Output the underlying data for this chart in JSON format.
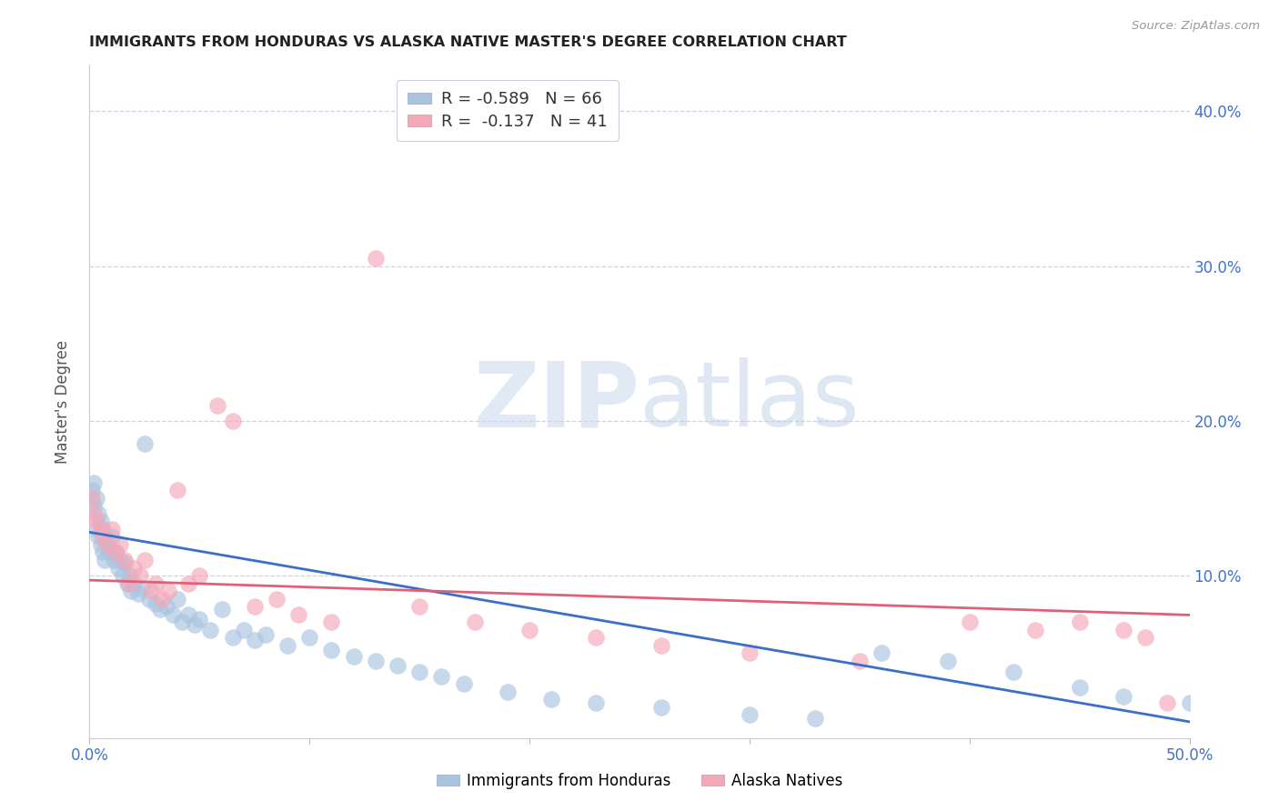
{
  "title": "IMMIGRANTS FROM HONDURAS VS ALASKA NATIVE MASTER'S DEGREE CORRELATION CHART",
  "source": "Source: ZipAtlas.com",
  "ylabel": "Master's Degree",
  "ytick_labels": [
    "10.0%",
    "20.0%",
    "30.0%",
    "40.0%"
  ],
  "ytick_values": [
    0.1,
    0.2,
    0.3,
    0.4
  ],
  "xlim": [
    0.0,
    0.5
  ],
  "ylim": [
    -0.005,
    0.43
  ],
  "blue_R": -0.589,
  "blue_N": 66,
  "pink_R": -0.137,
  "pink_N": 41,
  "blue_color": "#a8c4e0",
  "pink_color": "#f4a8b8",
  "blue_line_color": "#3a6fc8",
  "pink_line_color": "#e0607a",
  "watermark_zip": "ZIP",
  "watermark_atlas": "atlas",
  "background_color": "#ffffff",
  "grid_color": "#c8d4e8",
  "blue_scatter_x": [
    0.001,
    0.002,
    0.002,
    0.003,
    0.003,
    0.004,
    0.004,
    0.005,
    0.005,
    0.006,
    0.006,
    0.007,
    0.007,
    0.008,
    0.009,
    0.01,
    0.011,
    0.012,
    0.013,
    0.014,
    0.015,
    0.016,
    0.017,
    0.018,
    0.019,
    0.02,
    0.022,
    0.024,
    0.025,
    0.027,
    0.03,
    0.032,
    0.035,
    0.038,
    0.04,
    0.042,
    0.045,
    0.048,
    0.05,
    0.055,
    0.06,
    0.065,
    0.07,
    0.075,
    0.08,
    0.09,
    0.1,
    0.11,
    0.12,
    0.13,
    0.14,
    0.15,
    0.16,
    0.17,
    0.19,
    0.21,
    0.23,
    0.26,
    0.3,
    0.33,
    0.36,
    0.39,
    0.42,
    0.45,
    0.47,
    0.5
  ],
  "blue_scatter_y": [
    0.155,
    0.16,
    0.145,
    0.15,
    0.13,
    0.14,
    0.125,
    0.135,
    0.12,
    0.13,
    0.115,
    0.125,
    0.11,
    0.12,
    0.115,
    0.125,
    0.11,
    0.115,
    0.105,
    0.11,
    0.1,
    0.108,
    0.095,
    0.1,
    0.09,
    0.095,
    0.088,
    0.092,
    0.185,
    0.085,
    0.082,
    0.078,
    0.08,
    0.075,
    0.085,
    0.07,
    0.075,
    0.068,
    0.072,
    0.065,
    0.078,
    0.06,
    0.065,
    0.058,
    0.062,
    0.055,
    0.06,
    0.052,
    0.048,
    0.045,
    0.042,
    0.038,
    0.035,
    0.03,
    0.025,
    0.02,
    0.018,
    0.015,
    0.01,
    0.008,
    0.05,
    0.045,
    0.038,
    0.028,
    0.022,
    0.018
  ],
  "pink_scatter_x": [
    0.001,
    0.002,
    0.003,
    0.005,
    0.006,
    0.008,
    0.01,
    0.012,
    0.014,
    0.016,
    0.018,
    0.02,
    0.023,
    0.025,
    0.028,
    0.03,
    0.033,
    0.036,
    0.04,
    0.045,
    0.05,
    0.058,
    0.065,
    0.075,
    0.085,
    0.095,
    0.11,
    0.13,
    0.15,
    0.175,
    0.2,
    0.23,
    0.26,
    0.3,
    0.35,
    0.4,
    0.43,
    0.45,
    0.47,
    0.48,
    0.49
  ],
  "pink_scatter_y": [
    0.15,
    0.14,
    0.135,
    0.13,
    0.125,
    0.12,
    0.13,
    0.115,
    0.12,
    0.11,
    0.095,
    0.105,
    0.1,
    0.11,
    0.09,
    0.095,
    0.085,
    0.09,
    0.155,
    0.095,
    0.1,
    0.21,
    0.2,
    0.08,
    0.085,
    0.075,
    0.07,
    0.305,
    0.08,
    0.07,
    0.065,
    0.06,
    0.055,
    0.05,
    0.045,
    0.07,
    0.065,
    0.07,
    0.065,
    0.06,
    0.018
  ]
}
